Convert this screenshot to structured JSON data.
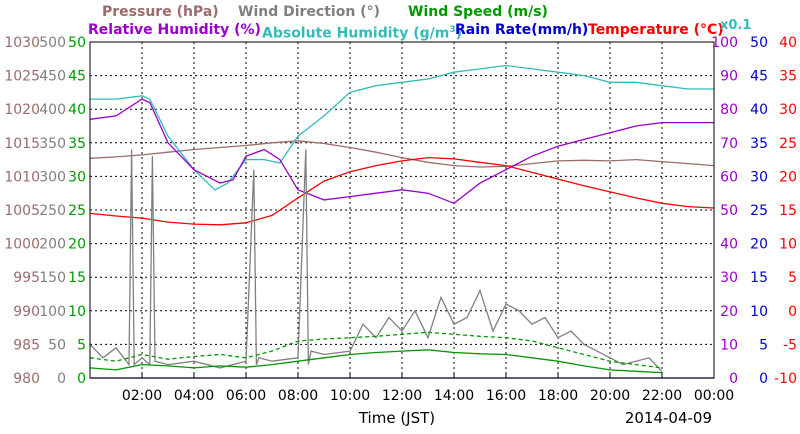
{
  "chart_data": {
    "type": "line",
    "date": "2014-04-09",
    "xlabel": "Time (JST)",
    "x_ticks": [
      "02:00",
      "04:00",
      "06:00",
      "08:00",
      "10:00",
      "12:00",
      "14:00",
      "16:00",
      "18:00",
      "20:00",
      "22:00",
      "00:00"
    ],
    "xlim": [
      0,
      24
    ],
    "grid": true,
    "legend": {
      "pressure": "Pressure (hPa)",
      "wind_direction": "Wind Direction (°)",
      "wind_speed": "Wind Speed (m/s)",
      "relative_humidity": "Relative Humidity (%)",
      "absolute_humidity": "Absolute Humidity (g/m",
      "absolute_humidity_sup": "3",
      "absolute_humidity_close": ")",
      "rain_rate": "Rain Rate(mm/h)",
      "temperature": "Temperature (°C)",
      "scale_note": "x0.1"
    },
    "axes": {
      "pressure": {
        "ticks": [
          "980",
          "985",
          "990",
          "995",
          "1000",
          "1005",
          "1010",
          "1015",
          "1020",
          "1025",
          "1030"
        ],
        "range": [
          980,
          1030
        ],
        "color": "#9c6b6b"
      },
      "wind_direction": {
        "ticks": [
          "0",
          "50",
          "100",
          "150",
          "200",
          "250",
          "300",
          "350",
          "400",
          "450",
          "500"
        ],
        "range": [
          0,
          500
        ],
        "color": "#808080"
      },
      "wind_speed": {
        "ticks": [
          "0",
          "5",
          "10",
          "15",
          "20",
          "25",
          "30",
          "35",
          "40",
          "45",
          "50"
        ],
        "range": [
          0,
          50
        ],
        "color": "#009900"
      },
      "humidity": {
        "ticks": [
          "0",
          "10",
          "20",
          "30",
          "40",
          "50",
          "60",
          "70",
          "80",
          "90",
          "100"
        ],
        "range": [
          0,
          100
        ],
        "color": "#9900cc"
      },
      "rain_rate": {
        "ticks": [
          "0",
          "5",
          "10",
          "15",
          "20",
          "25",
          "30",
          "35",
          "40",
          "45",
          "50"
        ],
        "range": [
          0,
          50
        ],
        "color": "#0000cc"
      },
      "temperature": {
        "ticks": [
          "-10",
          "-5",
          "0",
          "5",
          "10",
          "15",
          "20",
          "25",
          "30",
          "35",
          "40"
        ],
        "range": [
          -10,
          40
        ],
        "color": "#ff0000"
      }
    },
    "series": [
      {
        "key": "pressure",
        "color": "#9c6b6b",
        "axis": "pressure",
        "style": "solid",
        "x": [
          0,
          1,
          2,
          3,
          4,
          5,
          6,
          7,
          8,
          9,
          10,
          11,
          12,
          13,
          14,
          15,
          16,
          17,
          18,
          19,
          20,
          21,
          22,
          23,
          24
        ],
        "y": [
          1012.7,
          1012.9,
          1013.2,
          1013.6,
          1014.0,
          1014.3,
          1014.6,
          1015.0,
          1015.3,
          1014.9,
          1014.3,
          1013.6,
          1012.8,
          1012.1,
          1011.6,
          1011.4,
          1011.5,
          1011.9,
          1012.3,
          1012.4,
          1012.3,
          1012.5,
          1012.2,
          1011.9,
          1011.6
        ]
      },
      {
        "key": "absolute_humidity",
        "color": "#33bbbb",
        "axis": "humidity",
        "style": "solid",
        "scale": "x0.1",
        "x": [
          0,
          1,
          2,
          2.3,
          3,
          4,
          4.8,
          5.3,
          6,
          6.7,
          7.3,
          8,
          9,
          10,
          11,
          12,
          13,
          14,
          15,
          16,
          17,
          18,
          19,
          20,
          21,
          22,
          23,
          24
        ],
        "y": [
          83,
          83,
          84,
          83,
          72,
          62,
          56,
          58,
          65,
          65,
          64,
          72,
          78,
          85,
          87,
          88,
          89,
          91,
          92,
          93,
          92,
          91,
          90,
          88,
          88,
          87,
          86,
          86
        ]
      },
      {
        "key": "relative_humidity",
        "color": "#9900cc",
        "axis": "humidity",
        "style": "solid",
        "x": [
          0,
          1,
          2,
          2.3,
          3,
          4,
          5,
          5.5,
          6,
          6.7,
          7.3,
          8,
          9,
          10,
          11,
          12,
          13,
          14,
          15,
          16,
          17,
          18,
          19,
          20,
          21,
          22,
          23,
          24
        ],
        "y": [
          77,
          78,
          83,
          82,
          70,
          62,
          58,
          59,
          66,
          68,
          65,
          56,
          53,
          54,
          55,
          56,
          55,
          52,
          58,
          62,
          66,
          69,
          71,
          73,
          75,
          76,
          76,
          76
        ]
      },
      {
        "key": "temperature",
        "color": "#ff0000",
        "axis": "temperature",
        "style": "solid",
        "x": [
          0,
          1,
          2,
          3,
          4,
          5,
          6,
          7,
          8,
          9,
          10,
          11,
          12,
          13,
          14,
          15,
          16,
          17,
          18,
          19,
          20,
          21,
          22,
          23,
          24
        ],
        "y": [
          14.5,
          14.1,
          13.8,
          13.2,
          12.9,
          12.8,
          13.1,
          14.2,
          16.8,
          19.3,
          20.7,
          21.6,
          22.3,
          22.8,
          22.6,
          22.1,
          21.6,
          20.6,
          19.6,
          18.6,
          17.7,
          16.8,
          16.0,
          15.5,
          15.3
        ]
      },
      {
        "key": "wind_direction",
        "color": "#808080",
        "axis": "wind_direction",
        "style": "solid",
        "x": [
          0,
          0.5,
          1,
          1.5,
          1.6,
          1.7,
          2,
          2.3,
          2.4,
          2.5,
          3,
          4,
          5,
          6,
          6.3,
          6.4,
          6.5,
          7,
          8,
          8.3,
          8.4,
          8.5,
          9,
          10,
          10.5,
          11,
          11.5,
          12,
          12.5,
          13,
          13.5,
          14,
          14.5,
          15,
          15.5,
          16,
          16.5,
          17,
          17.5,
          18,
          18.5,
          19,
          19.5,
          20,
          20.5,
          21,
          21.5,
          22
        ],
        "y": [
          50,
          30,
          45,
          20,
          340,
          20,
          30,
          20,
          330,
          25,
          20,
          25,
          15,
          25,
          310,
          20,
          30,
          25,
          30,
          340,
          20,
          40,
          35,
          40,
          80,
          60,
          90,
          70,
          100,
          60,
          120,
          80,
          90,
          130,
          70,
          110,
          100,
          80,
          90,
          60,
          70,
          50,
          40,
          30,
          20,
          25,
          30,
          10
        ]
      },
      {
        "key": "wind_speed_max",
        "color": "#009900",
        "axis": "wind_speed",
        "style": "dashed",
        "x": [
          0,
          1,
          2,
          3,
          4,
          5,
          6,
          7,
          8,
          9,
          10,
          11,
          12,
          13,
          14,
          15,
          16,
          17,
          18,
          19,
          20,
          21,
          22
        ],
        "y": [
          3.0,
          2.5,
          3.5,
          2.8,
          3.2,
          3.5,
          3.0,
          4.0,
          5.5,
          5.8,
          6.0,
          6.2,
          6.5,
          6.8,
          6.5,
          6.2,
          6.0,
          5.5,
          4.5,
          3.5,
          2.5,
          2.0,
          1.5
        ]
      },
      {
        "key": "wind_speed",
        "color": "#009900",
        "axis": "wind_speed",
        "style": "solid",
        "x": [
          0,
          1,
          2,
          3,
          4,
          5,
          6,
          7,
          8,
          9,
          10,
          11,
          12,
          13,
          14,
          15,
          16,
          17,
          18,
          19,
          20,
          21,
          22
        ],
        "y": [
          1.5,
          1.2,
          2.0,
          1.8,
          1.5,
          1.8,
          1.6,
          2.0,
          2.5,
          3.0,
          3.5,
          3.8,
          4.0,
          4.2,
          3.8,
          3.6,
          3.5,
          3.0,
          2.5,
          1.8,
          1.2,
          1.0,
          0.8
        ]
      },
      {
        "key": "rain_rate",
        "color": "#0000cc",
        "axis": "rain_rate",
        "style": "solid",
        "x": [
          0,
          24
        ],
        "y": [
          0,
          0
        ]
      }
    ]
  }
}
